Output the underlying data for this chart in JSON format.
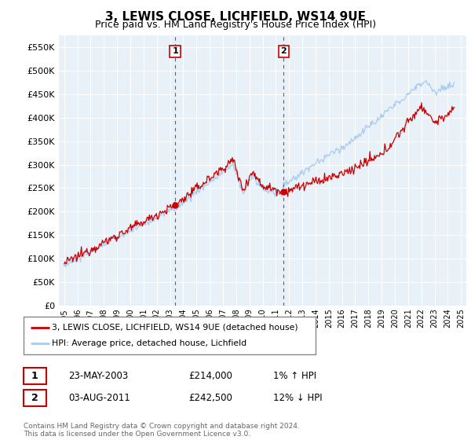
{
  "title": "3, LEWIS CLOSE, LICHFIELD, WS14 9UE",
  "subtitle": "Price paid vs. HM Land Registry's House Price Index (HPI)",
  "hpi_color": "#aaccee",
  "price_color": "#cc0000",
  "marker_color": "#cc0000",
  "background_color": "#e8f0f8",
  "ylim": [
    0,
    575000
  ],
  "yticks": [
    0,
    50000,
    100000,
    150000,
    200000,
    250000,
    300000,
    350000,
    400000,
    450000,
    500000,
    550000
  ],
  "xlim_start": 1994.6,
  "xlim_end": 2025.4,
  "transaction1": {
    "date_num": 2003.39,
    "price": 214000,
    "label": "1"
  },
  "transaction2": {
    "date_num": 2011.59,
    "price": 242500,
    "label": "2"
  },
  "legend_line1": "3, LEWIS CLOSE, LICHFIELD, WS14 9UE (detached house)",
  "legend_line2": "HPI: Average price, detached house, Lichfield",
  "table_row1": [
    "1",
    "23-MAY-2003",
    "£214,000",
    "1% ↑ HPI"
  ],
  "table_row2": [
    "2",
    "03-AUG-2011",
    "£242,500",
    "12% ↓ HPI"
  ],
  "footnote": "Contains HM Land Registry data © Crown copyright and database right 2024.\nThis data is licensed under the Open Government Licence v3.0."
}
